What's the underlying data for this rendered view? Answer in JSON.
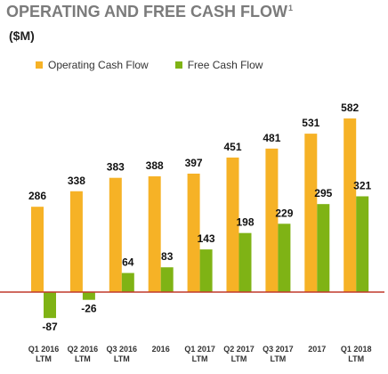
{
  "title": "OPERATING AND FREE CASH FLOW",
  "title_footnote": "1",
  "unit_label": "($M)",
  "colors": {
    "operating": "#f6b226",
    "free": "#7fb315",
    "baseline": "#c0392b"
  },
  "chart_data": {
    "type": "bar",
    "categories": [
      [
        "Q1 2016",
        "LTM"
      ],
      [
        "Q2 2016",
        "LTM"
      ],
      [
        "Q3 2016",
        "LTM"
      ],
      [
        "2016"
      ],
      [
        "Q1 2017",
        "LTM"
      ],
      [
        "Q2 2017",
        "LTM"
      ],
      [
        "Q3 2017",
        "LTM"
      ],
      [
        "2017"
      ],
      [
        "Q1 2018",
        "LTM"
      ]
    ],
    "series": [
      {
        "name": "Operating Cash Flow",
        "values": [
          286,
          338,
          383,
          388,
          397,
          451,
          481,
          531,
          582
        ]
      },
      {
        "name": "Free Cash Flow",
        "values": [
          -87,
          -26,
          64,
          83,
          143,
          198,
          229,
          295,
          321
        ]
      }
    ],
    "legend_position": "top-left",
    "grid": false
  }
}
